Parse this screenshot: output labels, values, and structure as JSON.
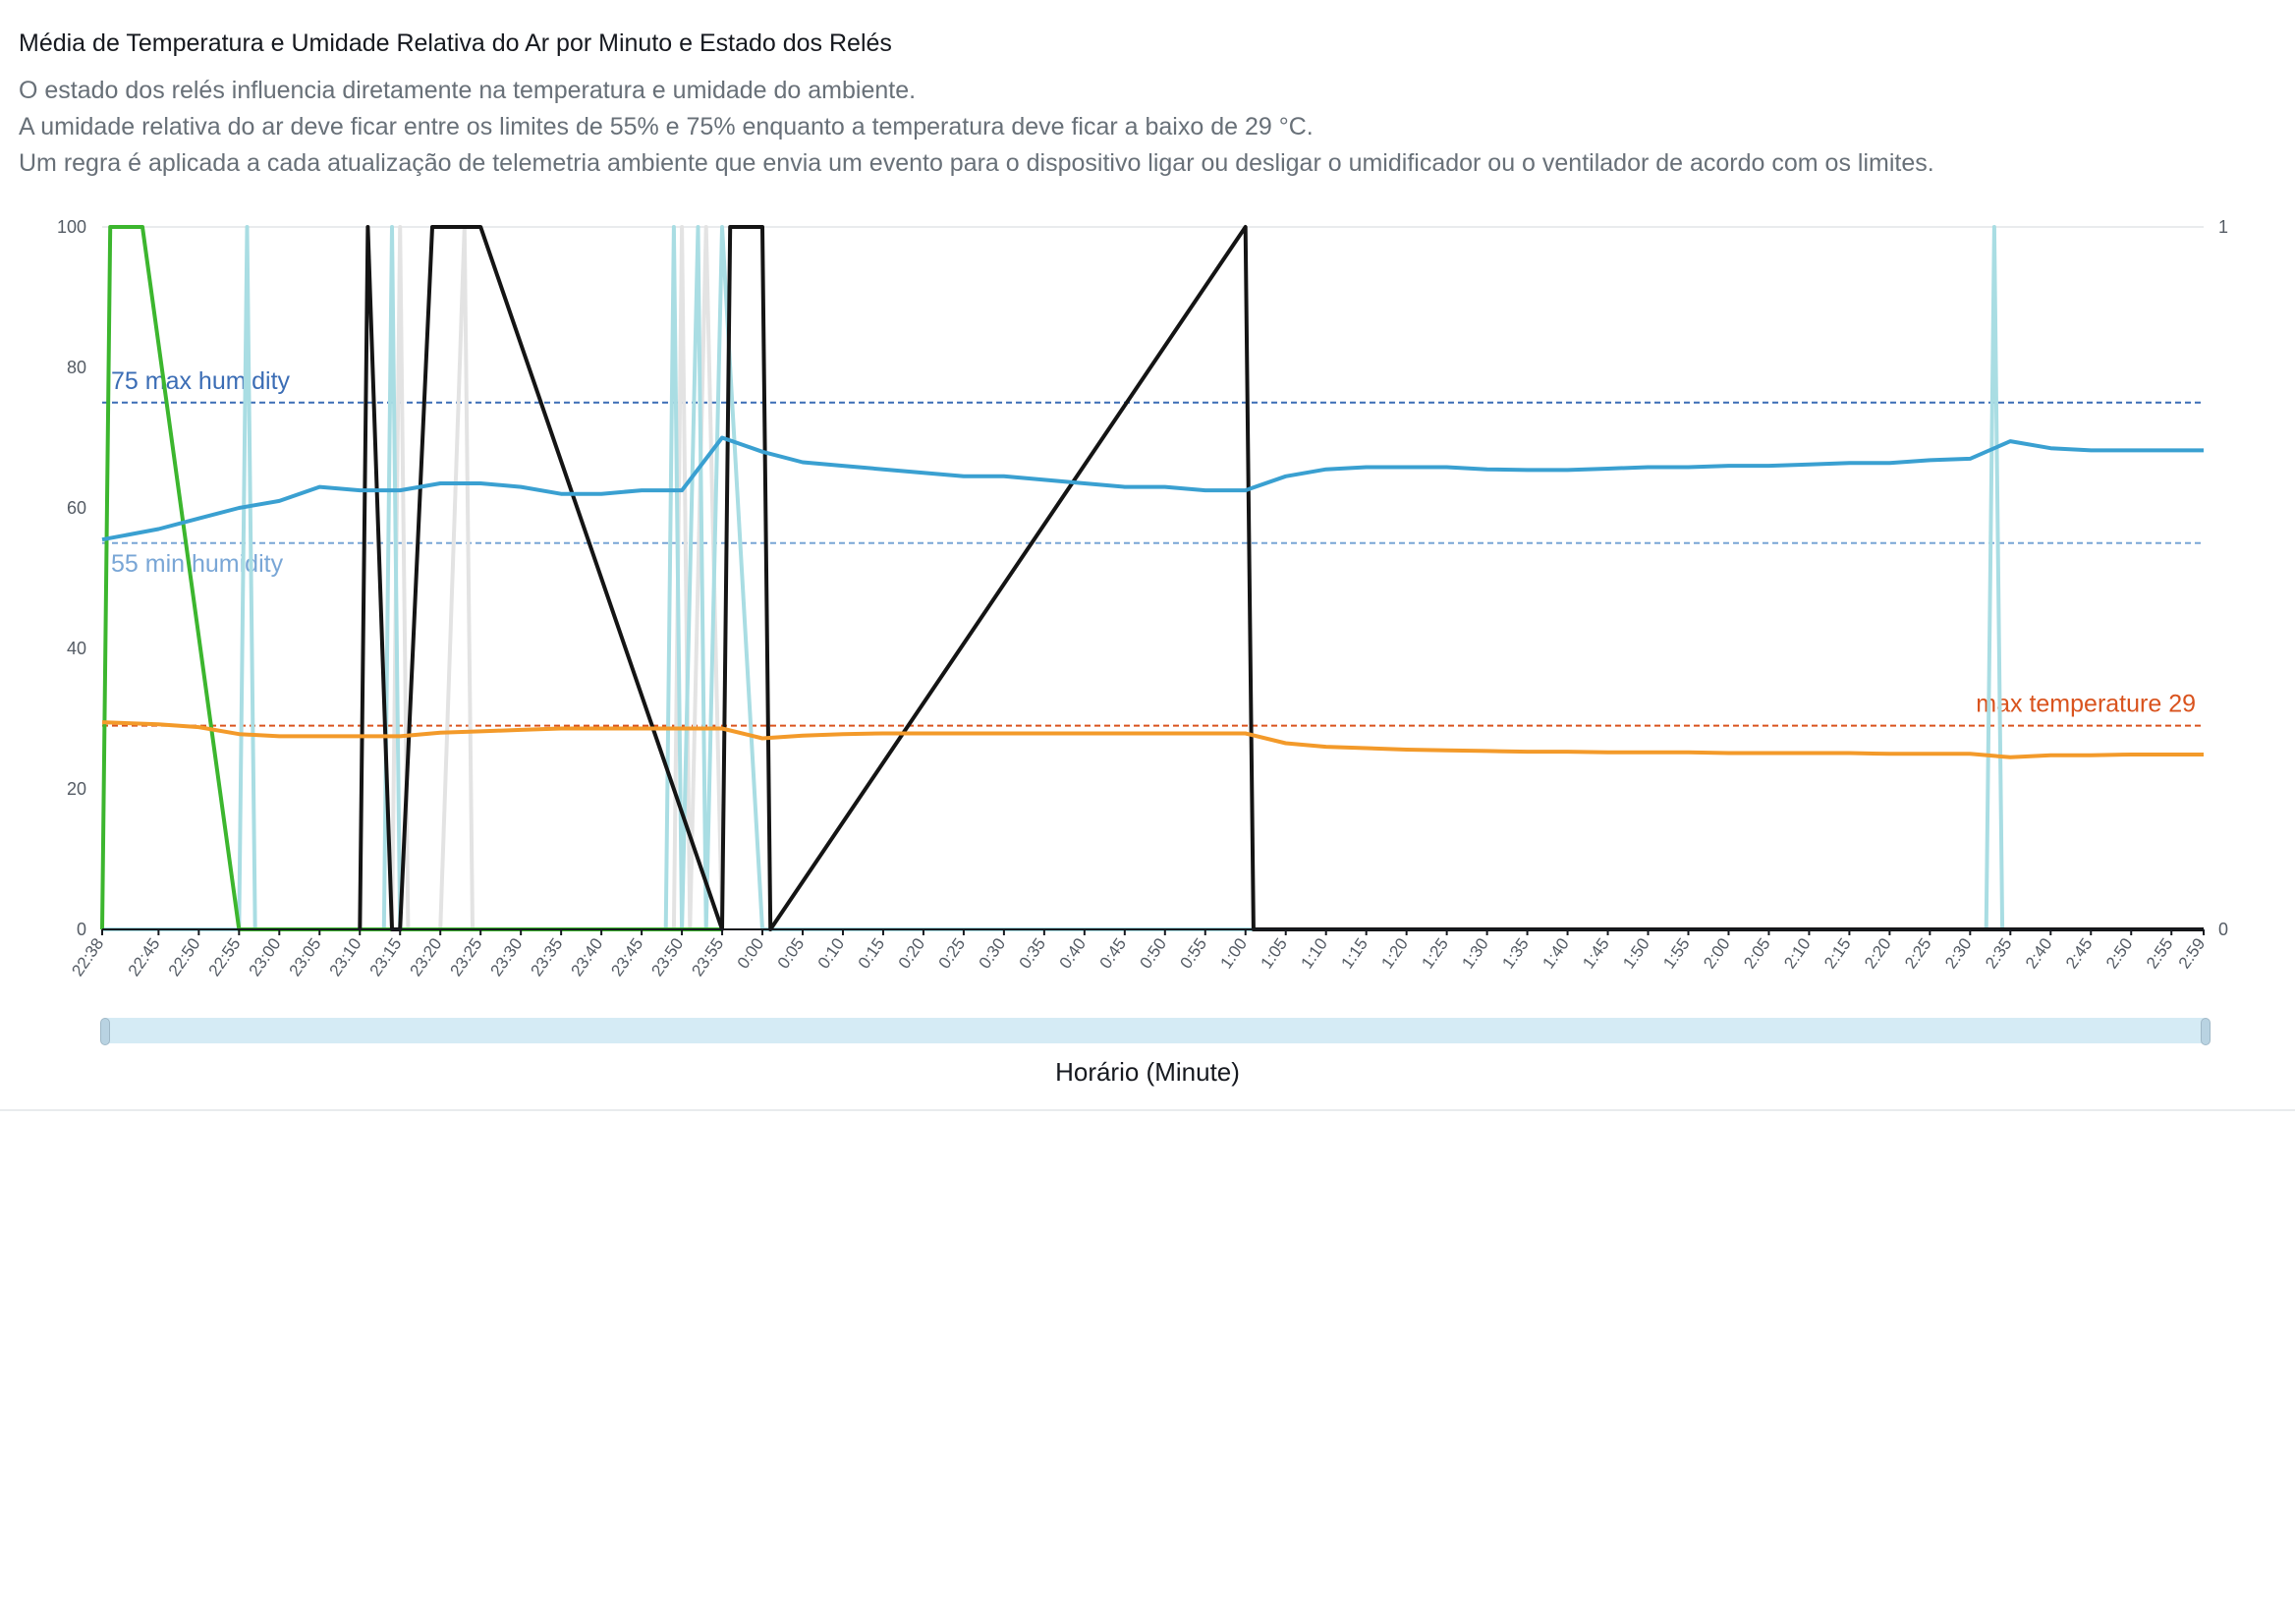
{
  "header": {
    "title": "Média de Temperatura e Umidade Relativa do Ar por Minuto e Estado dos Relés",
    "description": [
      "O estado dos relés influencia diretamente na temperatura e umidade do ambiente.",
      "A umidade relativa do ar deve ficar entre os limites de 55% e 75% enquanto a temperatura deve ficar a baixo de 29 °C.",
      "Um regra é aplicada a cada atualização de telemetria ambiente que envia um evento para o dispositivo ligar ou desligar o umidificador ou o ventilador de acordo com os limites."
    ]
  },
  "chart_data": {
    "type": "line",
    "xlabel": "Horário (Minute)",
    "x": [
      "22:38",
      "22:45",
      "22:50",
      "22:55",
      "23:00",
      "23:05",
      "23:10",
      "23:15",
      "23:20",
      "23:25",
      "23:30",
      "23:35",
      "23:40",
      "23:45",
      "23:50",
      "23:55",
      "0:00",
      "0:05",
      "0:10",
      "0:15",
      "0:20",
      "0:25",
      "0:30",
      "0:35",
      "0:40",
      "0:45",
      "0:50",
      "0:55",
      "1:00",
      "1:05",
      "1:10",
      "1:15",
      "1:20",
      "1:25",
      "1:30",
      "1:35",
      "1:40",
      "1:45",
      "1:50",
      "1:55",
      "2:00",
      "2:05",
      "2:10",
      "2:15",
      "2:20",
      "2:25",
      "2:30",
      "2:35",
      "2:40",
      "2:45",
      "2:50",
      "2:55",
      "2:59"
    ],
    "y_left": {
      "ylim": [
        0,
        100
      ],
      "ticks": [
        0,
        20,
        40,
        60,
        80,
        100
      ]
    },
    "y_right": {
      "ylim": [
        0,
        1
      ],
      "ticks": [
        0,
        1
      ]
    },
    "grid": false,
    "reference_lines": [
      {
        "label": "75 max humidity",
        "value": 75,
        "color": "#3b6db5",
        "axis": "left"
      },
      {
        "label": "55 min humidity",
        "value": 55,
        "color": "#79a6d6",
        "axis": "left"
      },
      {
        "label": "max temperature 29",
        "value": 29,
        "color": "#d9531e",
        "axis": "left"
      }
    ],
    "series": [
      {
        "color": "#3aa0d1",
        "axis": "left",
        "values": [
          55.5,
          57,
          58.5,
          60,
          61,
          63,
          62.5,
          62.5,
          63.5,
          63.5,
          63,
          62,
          62,
          62.5,
          62.5,
          70,
          68,
          66.5,
          66,
          65.5,
          65,
          64.5,
          64.5,
          64,
          63.5,
          63,
          63,
          62.5,
          62.5,
          64.5,
          65.5,
          65.8,
          65.8,
          65.8,
          65.5,
          65.4,
          65.4,
          65.6,
          65.8,
          65.8,
          66,
          66,
          66.2,
          66.4,
          66.4,
          66.8,
          67,
          69.5,
          68.5,
          68.2,
          68.2,
          68.2,
          68.2
        ]
      },
      {
        "color": "#f39a2a",
        "axis": "left",
        "values": [
          29.5,
          29.2,
          28.8,
          27.8,
          27.5,
          27.5,
          27.5,
          27.5,
          28,
          28.2,
          28.4,
          28.6,
          28.6,
          28.6,
          28.6,
          28.6,
          27.2,
          27.6,
          27.8,
          27.9,
          27.9,
          27.9,
          27.9,
          27.9,
          27.9,
          27.9,
          27.9,
          27.9,
          27.9,
          26.5,
          26,
          25.8,
          25.6,
          25.5,
          25.4,
          25.3,
          25.3,
          25.2,
          25.2,
          25.2,
          25.1,
          25.1,
          25.1,
          25.1,
          25,
          25,
          25,
          24.5,
          24.8,
          24.8,
          24.9,
          24.9,
          24.9
        ]
      },
      {
        "color": "#3cb62e",
        "axis": "right",
        "points": [
          [
            "22:38",
            0
          ],
          [
            "22:39",
            1
          ],
          [
            "22:43",
            1
          ],
          [
            "22:55",
            0
          ],
          [
            "23:54",
            0
          ],
          [
            "23:55",
            0
          ]
        ]
      },
      {
        "color": "#141414",
        "axis": "right",
        "points": [
          [
            "23:10",
            0
          ],
          [
            "23:11",
            1
          ],
          [
            "23:14",
            0
          ],
          [
            "23:15",
            0
          ],
          [
            "23:19",
            1
          ],
          [
            "23:25",
            1
          ],
          [
            "23:55",
            0
          ],
          [
            "23:56",
            1
          ],
          [
            "0:00",
            1
          ],
          [
            "0:01",
            0
          ],
          [
            "1:00",
            1
          ],
          [
            "1:01",
            0
          ],
          [
            "2:59",
            0
          ]
        ]
      },
      {
        "color": "#a9dde3",
        "axis": "right",
        "points": [
          [
            "22:38",
            0
          ],
          [
            "22:55",
            0
          ],
          [
            "22:56",
            1
          ],
          [
            "22:57",
            0
          ],
          [
            "23:13",
            0
          ],
          [
            "23:14",
            1
          ],
          [
            "23:15",
            0
          ],
          [
            "23:48",
            0
          ],
          [
            "23:49",
            1
          ],
          [
            "23:50",
            0
          ],
          [
            "23:52",
            1
          ],
          [
            "23:53",
            0
          ],
          [
            "23:55",
            1
          ],
          [
            "0:00",
            0
          ],
          [
            "2:32",
            0
          ],
          [
            "2:33",
            1
          ],
          [
            "2:34",
            0
          ],
          [
            "2:59",
            0
          ]
        ]
      },
      {
        "color": "#e3e3e3",
        "axis": "right",
        "points": [
          [
            "23:14",
            0
          ],
          [
            "23:15",
            1
          ],
          [
            "23:16",
            0
          ],
          [
            "23:20",
            0
          ],
          [
            "23:23",
            1
          ],
          [
            "23:24",
            0
          ],
          [
            "23:49",
            0
          ],
          [
            "23:50",
            1
          ],
          [
            "23:51",
            0
          ],
          [
            "23:53",
            1
          ],
          [
            "23:55",
            0
          ]
        ]
      }
    ]
  }
}
